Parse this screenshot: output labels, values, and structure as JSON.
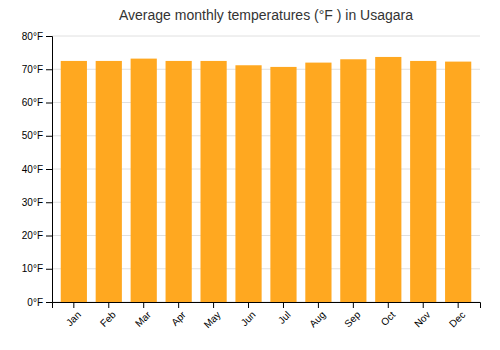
{
  "chart_data": {
    "type": "bar",
    "title": "Average monthly temperatures (°F ) in Usagara",
    "categories": [
      "Jan",
      "Feb",
      "Mar",
      "Apr",
      "May",
      "Jun",
      "Jul",
      "Aug",
      "Sep",
      "Oct",
      "Nov",
      "Dec"
    ],
    "values": [
      72.5,
      72.5,
      73.2,
      72.5,
      72.5,
      71.2,
      70.7,
      72.0,
      73.0,
      73.7,
      72.5,
      72.3
    ],
    "color": "#FFA820",
    "ylim": [
      0,
      80
    ],
    "yticks": [
      {
        "value": 0,
        "label": "0°F"
      },
      {
        "value": 10,
        "label": "10°F"
      },
      {
        "value": 20,
        "label": "20°F"
      },
      {
        "value": 30,
        "label": "30°F"
      },
      {
        "value": 40,
        "label": "40°F"
      },
      {
        "value": 50,
        "label": "50°F"
      },
      {
        "value": 60,
        "label": "60°F"
      },
      {
        "value": 70,
        "label": "70°F"
      },
      {
        "value": 80,
        "label": "80°F"
      }
    ],
    "grid": true
  }
}
